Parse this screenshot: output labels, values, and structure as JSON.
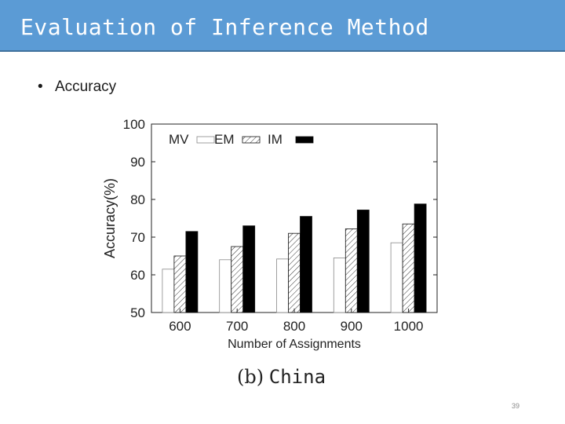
{
  "slide": {
    "title": "Evaluation of Inference Method",
    "bullet": "•",
    "bullet_text": "Accuracy",
    "caption_label": "(b)",
    "caption_region": "China",
    "page_number": "39"
  },
  "colors": {
    "title_bar": "#5b9bd5",
    "bar_dark": "#000000",
    "bar_light": "#ffffff"
  },
  "chart_data": {
    "type": "bar",
    "title": "",
    "xlabel": "Number of Assignments",
    "ylabel": "Accuracy(%)",
    "ylim": [
      50,
      100
    ],
    "yticks": [
      50,
      60,
      70,
      80,
      90,
      100
    ],
    "categories": [
      "600",
      "700",
      "800",
      "900",
      "1000"
    ],
    "legend_position": "top-left",
    "series": [
      {
        "name": "MV",
        "style": "white",
        "values": [
          61.5,
          64,
          64.2,
          64.5,
          68.5
        ]
      },
      {
        "name": "EM",
        "style": "hatched",
        "values": [
          65,
          67.5,
          71,
          72.2,
          73.5
        ]
      },
      {
        "name": "IM",
        "style": "black",
        "values": [
          71.5,
          73,
          75.5,
          77.2,
          78.8
        ]
      }
    ]
  }
}
